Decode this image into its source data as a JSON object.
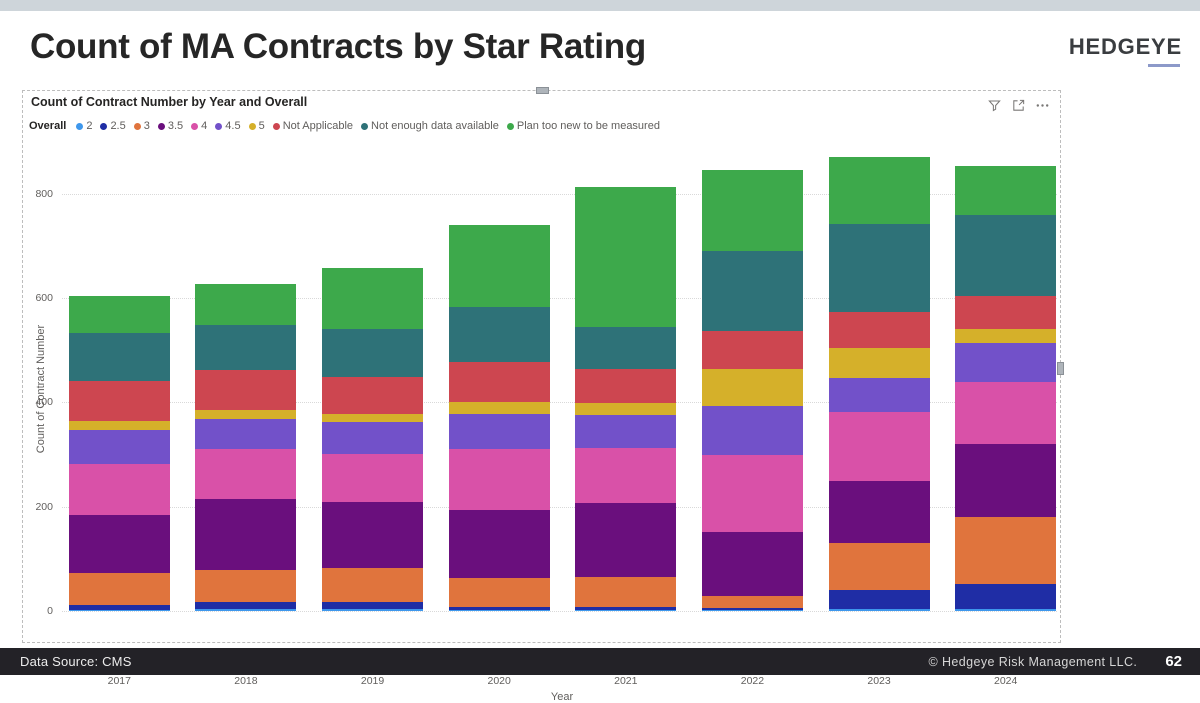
{
  "page": {
    "title": "Count of MA Contracts by Star Rating",
    "logo": "HEDGEYE",
    "footer": {
      "left": "Data Source: CMS",
      "right": "© Hedgeye Risk Management LLC.",
      "page_number": "62"
    }
  },
  "visual": {
    "title": "Count of Contract Number by Year and Overall",
    "legend_title": "Overall",
    "icons": [
      "filter-icon",
      "focus-mode-icon",
      "more-options-icon"
    ]
  },
  "chart_data": {
    "type": "bar",
    "stacked": true,
    "title": "Count of Contract Number by Year and Overall",
    "xlabel": "Year",
    "ylabel": "Count of Contract Number",
    "ylim": [
      0,
      880
    ],
    "yticks": [
      0,
      200,
      400,
      600,
      800
    ],
    "grid": "horizontal-dotted",
    "legend_position": "top",
    "categories": [
      "2017",
      "2018",
      "2019",
      "2020",
      "2021",
      "2022",
      "2023",
      "2024"
    ],
    "series": [
      {
        "name": "2",
        "color": "#3e97ec",
        "values": [
          2,
          4,
          3,
          2,
          2,
          2,
          4,
          4
        ]
      },
      {
        "name": "2.5",
        "color": "#1f2da5",
        "values": [
          10,
          14,
          15,
          6,
          6,
          4,
          37,
          48
        ]
      },
      {
        "name": "3",
        "color": "#e0743d",
        "values": [
          61,
          60,
          65,
          55,
          58,
          23,
          89,
          128
        ]
      },
      {
        "name": "3.5",
        "color": "#6a0f7d",
        "values": [
          111,
          136,
          126,
          130,
          142,
          122,
          120,
          140
        ]
      },
      {
        "name": "4",
        "color": "#d951a8",
        "values": [
          97,
          96,
          93,
          117,
          104,
          149,
          132,
          119
        ]
      },
      {
        "name": "4.5",
        "color": "#7251c9",
        "values": [
          66,
          58,
          61,
          68,
          64,
          94,
          65,
          74
        ]
      },
      {
        "name": "5",
        "color": "#d5b02a",
        "values": [
          18,
          17,
          14,
          22,
          22,
          70,
          57,
          28
        ]
      },
      {
        "name": "Not Applicable",
        "color": "#cd4650",
        "values": [
          76,
          78,
          71,
          77,
          66,
          73,
          70,
          63
        ]
      },
      {
        "name": "Not enough data available",
        "color": "#2e7278",
        "values": [
          92,
          86,
          92,
          106,
          81,
          154,
          169,
          156
        ]
      },
      {
        "name": "Plan too new to be measured",
        "color": "#3da94b",
        "values": [
          72,
          79,
          118,
          157,
          268,
          154,
          127,
          94
        ]
      }
    ],
    "totals": [
      605,
      628,
      658,
      740,
      813,
      845,
      870,
      854
    ]
  }
}
